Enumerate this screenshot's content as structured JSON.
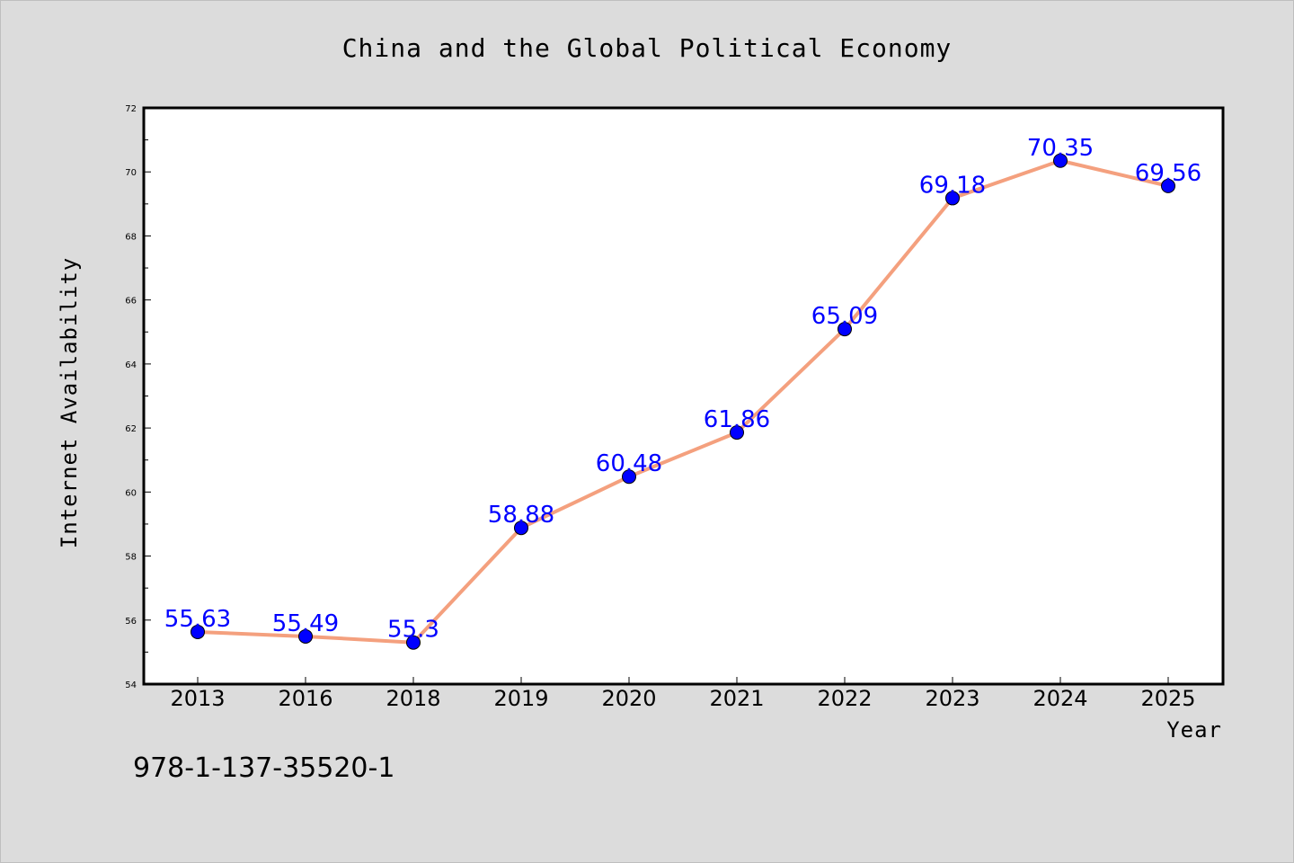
{
  "chart_data": {
    "type": "line",
    "title": "China and the Global Political Economy",
    "xlabel": "Year",
    "ylabel": "Internet Availability",
    "categories": [
      "2013",
      "2016",
      "2018",
      "2019",
      "2020",
      "2021",
      "2022",
      "2023",
      "2024",
      "2025"
    ],
    "series": [
      {
        "values": [
          55.63,
          55.49,
          55.3,
          58.88,
          60.48,
          61.86,
          65.09,
          69.18,
          70.35,
          69.56
        ],
        "line_color": "#f4a07e",
        "marker_color": "#0000ff"
      }
    ],
    "data_labels": [
      "55.63",
      "55.49",
      "55.3",
      "58.88",
      "60.48",
      "61.86",
      "65.09",
      "69.18",
      "70.35",
      "69.56"
    ],
    "ylim": [
      54,
      72
    ],
    "yticks": [
      54,
      56,
      58,
      60,
      62,
      64,
      66,
      68,
      70,
      72
    ],
    "grid": false,
    "legend": "none"
  },
  "footer": {
    "isbn": "978-1-137-35520-1"
  }
}
